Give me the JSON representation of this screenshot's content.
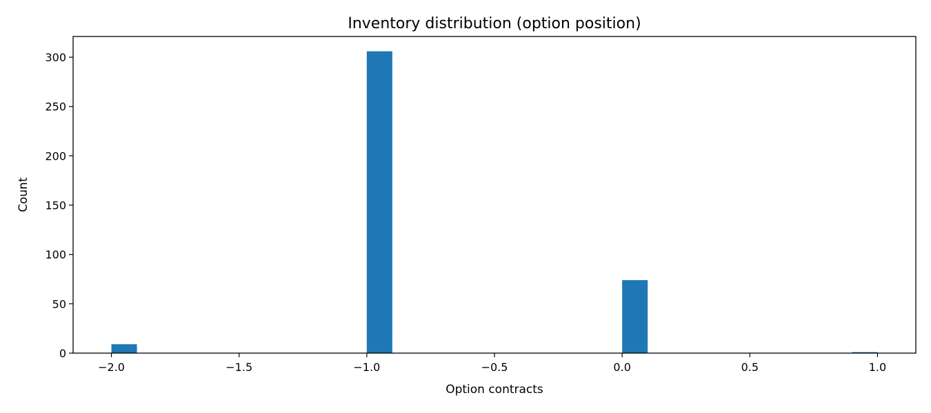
{
  "chart_data": {
    "type": "bar",
    "title": "Inventory distribution (option position)",
    "xlabel": "Option contracts",
    "ylabel": "Count",
    "xlim": [
      -2.15,
      1.15
    ],
    "ylim": [
      0,
      321
    ],
    "bin_width": 0.1,
    "bars": [
      {
        "x_left": -2.0,
        "value": 9
      },
      {
        "x_left": -1.0,
        "value": 306
      },
      {
        "x_left": 0.0,
        "value": 74
      },
      {
        "x_left": 0.9,
        "value": 1
      }
    ],
    "x_ticks": [
      -2.0,
      -1.5,
      -1.0,
      -0.5,
      0.0,
      0.5,
      1.0
    ],
    "x_tick_labels": [
      "−2.0",
      "−1.5",
      "−1.0",
      "−0.5",
      "0.0",
      "0.5",
      "1.0"
    ],
    "y_ticks": [
      0,
      50,
      100,
      150,
      200,
      250,
      300
    ],
    "y_tick_labels": [
      "0",
      "50",
      "100",
      "150",
      "200",
      "250",
      "300"
    ],
    "grid": false,
    "bar_color": "#1f77b4"
  }
}
